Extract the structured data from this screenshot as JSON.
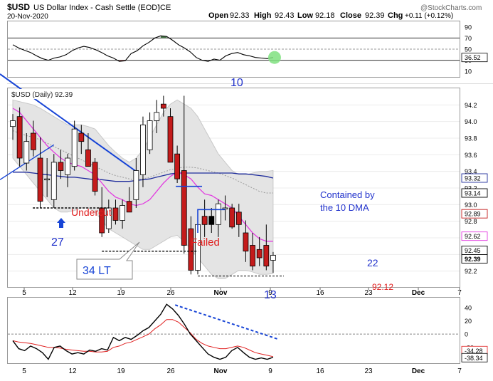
{
  "header": {
    "symbol": "$USD",
    "name": "US Dollar Index - Cash Settle (EOD)",
    "exchange": "ICE",
    "date": "20-Nov-2020",
    "open_label": "Open",
    "open": "92.33",
    "high_label": "High",
    "high": "92.43",
    "low_label": "Low",
    "low": "92.18",
    "close_label": "Close",
    "close": "92.39",
    "chg_label": "Chg",
    "chg": "+0.11 (+0.12%)",
    "watermark": "@StockCharts.com"
  },
  "legend": "$USD (Daily) 92.39",
  "chart_data": [
    {
      "type": "line",
      "panel": "rsi",
      "ylim": [
        0,
        100
      ],
      "ticks": [
        10,
        30,
        50,
        70,
        90
      ],
      "reference_lines": [
        30,
        50,
        70
      ],
      "last_value_label": "36.52",
      "values": [
        58,
        52,
        48,
        44,
        38,
        33,
        30,
        34,
        36,
        40,
        47,
        52,
        55,
        53,
        49,
        44,
        38,
        34,
        28,
        29,
        42,
        47,
        56,
        62,
        70,
        74,
        73,
        66,
        58,
        52,
        45,
        35,
        30,
        28,
        32,
        30,
        38,
        42,
        44,
        40,
        38,
        35,
        34,
        33,
        35
      ]
    },
    {
      "type": "candlestick",
      "panel": "price",
      "ylim": [
        92.0,
        94.4
      ],
      "ticks": [
        92.2,
        92.4,
        92.6,
        92.8,
        93.0,
        93.2,
        93.4,
        93.6,
        93.8,
        94.0,
        94.2
      ],
      "x_labels": [
        "5",
        "12",
        "19",
        "26",
        "Nov",
        "9",
        "16",
        "23",
        "Dec",
        "7"
      ],
      "price_tags": [
        "93.32",
        "93.14",
        "92.89",
        "92.62",
        "92.45",
        "92.39"
      ],
      "candles": [
        {
          "o": 93.94,
          "h": 94.09,
          "l": 93.78,
          "c": 94.01
        },
        {
          "o": 94.06,
          "h": 94.17,
          "l": 93.46,
          "c": 93.56
        },
        {
          "o": 93.5,
          "h": 93.86,
          "l": 93.41,
          "c": 93.76
        },
        {
          "o": 93.86,
          "h": 94.01,
          "l": 93.58,
          "c": 93.66
        },
        {
          "o": 93.56,
          "h": 93.81,
          "l": 92.96,
          "c": 93.04
        },
        {
          "o": 93.31,
          "h": 93.56,
          "l": 93.09,
          "c": 93.31
        },
        {
          "o": 93.06,
          "h": 93.61,
          "l": 92.96,
          "c": 93.51
        },
        {
          "o": 93.51,
          "h": 93.66,
          "l": 93.31,
          "c": 93.41
        },
        {
          "o": 93.36,
          "h": 93.61,
          "l": 93.21,
          "c": 93.56
        },
        {
          "o": 93.46,
          "h": 94.01,
          "l": 93.41,
          "c": 93.91
        },
        {
          "o": 93.86,
          "h": 93.96,
          "l": 93.61,
          "c": 93.76
        },
        {
          "o": 93.66,
          "h": 93.86,
          "l": 93.46,
          "c": 93.46
        },
        {
          "o": 93.51,
          "h": 93.56,
          "l": 93.11,
          "c": 93.16
        },
        {
          "o": 92.96,
          "h": 93.21,
          "l": 92.61,
          "c": 92.66
        },
        {
          "o": 92.71,
          "h": 93.06,
          "l": 92.66,
          "c": 92.96
        },
        {
          "o": 92.96,
          "h": 93.06,
          "l": 92.76,
          "c": 92.81
        },
        {
          "o": 92.81,
          "h": 93.06,
          "l": 92.71,
          "c": 92.99
        },
        {
          "o": 93.04,
          "h": 93.21,
          "l": 92.91,
          "c": 92.91
        },
        {
          "o": 93.06,
          "h": 93.56,
          "l": 92.96,
          "c": 93.41
        },
        {
          "o": 93.36,
          "h": 94.06,
          "l": 93.21,
          "c": 93.96
        },
        {
          "o": 93.66,
          "h": 94.11,
          "l": 93.61,
          "c": 94.01
        },
        {
          "o": 94.01,
          "h": 94.26,
          "l": 93.86,
          "c": 94.11
        },
        {
          "o": 94.21,
          "h": 94.31,
          "l": 94.06,
          "c": 94.16
        },
        {
          "o": 94.06,
          "h": 94.16,
          "l": 93.51,
          "c": 93.51
        },
        {
          "o": 93.61,
          "h": 93.71,
          "l": 93.26,
          "c": 93.31
        },
        {
          "o": 93.41,
          "h": 94.31,
          "l": 92.41,
          "c": 92.51
        },
        {
          "o": 92.71,
          "h": 92.86,
          "l": 92.16,
          "c": 92.21
        },
        {
          "o": 92.21,
          "h": 92.81,
          "l": 92.16,
          "c": 92.76
        },
        {
          "o": 92.86,
          "h": 93.06,
          "l": 92.61,
          "c": 92.76
        },
        {
          "o": 92.76,
          "h": 92.96,
          "l": 92.66,
          "c": 92.86
        },
        {
          "o": 92.76,
          "h": 93.06,
          "l": 92.61,
          "c": 93.01
        },
        {
          "o": 92.96,
          "h": 93.11,
          "l": 92.81,
          "c": 92.96
        },
        {
          "o": 92.96,
          "h": 93.01,
          "l": 92.71,
          "c": 92.73
        },
        {
          "o": 92.91,
          "h": 93.01,
          "l": 92.61,
          "c": 92.76
        },
        {
          "o": 92.66,
          "h": 92.81,
          "l": 92.31,
          "c": 92.44
        },
        {
          "o": 92.51,
          "h": 92.66,
          "l": 92.21,
          "c": 92.26
        },
        {
          "o": 92.46,
          "h": 92.61,
          "l": 92.26,
          "c": 92.36
        },
        {
          "o": 92.51,
          "h": 92.76,
          "l": 92.21,
          "c": 92.26
        },
        {
          "o": 92.33,
          "h": 92.43,
          "l": 92.18,
          "c": 92.39
        }
      ],
      "ma_short": [
        94.16,
        94.11,
        94.01,
        93.91,
        93.81,
        93.71,
        93.63,
        93.56,
        93.51,
        93.48,
        93.46,
        93.41,
        93.36,
        93.26,
        93.16,
        93.09,
        93.06,
        93.01,
        92.99,
        93.01,
        93.06,
        93.16,
        93.26,
        93.34,
        93.39,
        93.36,
        93.31,
        93.21,
        93.13,
        93.11,
        93.06,
        93.01,
        92.96,
        92.86,
        92.76,
        92.66,
        92.59,
        92.56,
        92.56
      ],
      "ma_long": [
        93.39,
        93.39,
        93.39,
        93.38,
        93.37,
        93.36,
        93.35,
        93.34,
        93.33,
        93.33,
        93.32,
        93.31,
        93.3,
        93.3,
        93.29,
        93.28,
        93.28,
        93.28,
        93.29,
        93.3,
        93.31,
        93.33,
        93.35,
        93.37,
        93.38,
        93.38,
        93.38,
        93.38,
        93.38,
        93.38,
        93.38,
        93.38,
        93.38,
        93.37,
        93.37,
        93.36,
        93.35,
        93.34,
        93.32
      ],
      "ma_dotted": [
        93.89,
        93.86,
        93.83,
        93.81,
        93.78,
        93.74,
        93.7,
        93.66,
        93.62,
        93.58,
        93.54,
        93.5,
        93.46,
        93.42,
        93.38,
        93.35,
        93.33,
        93.31,
        93.3,
        93.31,
        93.33,
        93.36,
        93.39,
        93.42,
        93.44,
        93.45,
        93.45,
        93.44,
        93.42,
        93.4,
        93.38,
        93.35,
        93.32,
        93.28,
        93.24,
        93.2,
        93.16,
        93.14,
        93.14
      ],
      "bb_upper": [
        94.26,
        94.24,
        94.22,
        94.2,
        94.16,
        94.11,
        94.06,
        94.01,
        93.96,
        93.96,
        93.96,
        93.94,
        93.91,
        93.81,
        93.71,
        93.63,
        93.56,
        93.51,
        93.56,
        93.66,
        93.81,
        93.96,
        94.11,
        94.21,
        94.26,
        94.21,
        94.16,
        94.06,
        93.91,
        93.76,
        93.61,
        93.51,
        93.41,
        93.36,
        93.36,
        93.38,
        93.4,
        93.4,
        93.41
      ],
      "bb_lower": [
        93.56,
        93.46,
        93.36,
        93.26,
        93.16,
        93.06,
        92.96,
        92.91,
        92.91,
        92.93,
        92.96,
        92.96,
        92.91,
        92.81,
        92.71,
        92.66,
        92.61,
        92.56,
        92.51,
        92.46,
        92.46,
        92.51,
        92.56,
        92.61,
        92.63,
        92.56,
        92.46,
        92.36,
        92.26,
        92.16,
        92.11,
        92.11,
        92.16,
        92.21,
        92.21,
        92.19,
        92.16,
        92.16,
        92.17
      ]
    },
    {
      "type": "line",
      "panel": "macd",
      "ylim": [
        -45,
        55
      ],
      "ticks": [
        -20,
        0,
        20,
        40
      ],
      "last_value_labels": [
        "-34.28",
        "-38.34"
      ],
      "macd": [
        -10,
        -22,
        -25,
        -18,
        -22,
        -28,
        -38,
        -20,
        -18,
        -25,
        -30,
        -28,
        -30,
        -24,
        -26,
        -22,
        -24,
        -5,
        -10,
        -5,
        -8,
        -2,
        5,
        10,
        20,
        30,
        45,
        38,
        28,
        15,
        0,
        -10,
        -20,
        -30,
        -35,
        -38,
        -35,
        -25,
        -20,
        -28,
        -35,
        -38,
        -36,
        -38,
        -35
      ],
      "signal": [
        -10,
        -12,
        -13,
        -14,
        -16,
        -18,
        -20,
        -20,
        -21,
        -23,
        -24,
        -25,
        -26,
        -26,
        -27,
        -27,
        -26,
        -20,
        -18,
        -14,
        -12,
        -8,
        -4,
        0,
        8,
        14,
        22,
        22,
        18,
        10,
        2,
        -8,
        -14,
        -18,
        -20,
        -22,
        -22,
        -20,
        -18,
        -20,
        -24,
        -28,
        -30,
        -32,
        -34
      ]
    }
  ],
  "annotations": {
    "n10": "10",
    "n27": "27",
    "n13": "13",
    "n22": "22",
    "undercut": "Undercut",
    "failed": "Failed",
    "lt34": "34 LT",
    "contained_l1": "Contained by",
    "contained_l2": "the 10 DMA",
    "p9212": "92.12"
  },
  "colors": {
    "candle_up": "#ffffff",
    "candle_down": "#c41b1b",
    "ma_long": "#1f2d9c",
    "ma_short": "#e23ce0",
    "trendline": "#1744d6",
    "annotation_red": "#e02020",
    "annotation_blue": "#2233cc",
    "band_fill": "#e4e4e4"
  }
}
